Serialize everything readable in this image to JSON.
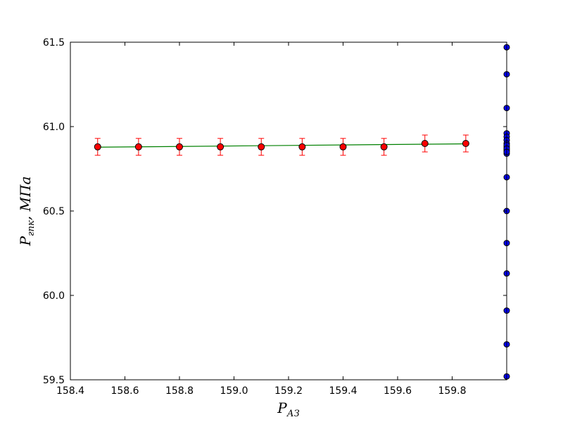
{
  "chart_data": {
    "type": "scatter",
    "title": "",
    "xlabel": {
      "main": "P",
      "sub": "АЗ"
    },
    "ylabel": {
      "main": "P",
      "sub": "гпк",
      "suffix": ", МПа"
    },
    "xlim": [
      158.4,
      160.0
    ],
    "ylim": [
      59.5,
      61.5
    ],
    "x_ticks": [
      "158.4",
      "158.6",
      "158.8",
      "159.0",
      "159.2",
      "159.4",
      "159.6",
      "159.8"
    ],
    "y_ticks": [
      "59.5",
      "60.0",
      "60.5",
      "61.0",
      "61.5"
    ],
    "grid": false,
    "series": [
      {
        "kind": "errorbar",
        "color": "#ff0000",
        "error_color": "#ff0000",
        "x": [
          158.5,
          158.65,
          158.8,
          158.95,
          159.1,
          159.25,
          159.4,
          159.55,
          159.7,
          159.85
        ],
        "y": [
          60.88,
          60.88,
          60.88,
          60.88,
          60.88,
          60.88,
          60.88,
          60.88,
          60.9,
          60.9
        ],
        "yerr": [
          0.05,
          0.05,
          0.05,
          0.05,
          0.05,
          0.05,
          0.05,
          0.05,
          0.05,
          0.05
        ]
      },
      {
        "kind": "fit-line",
        "color": "#008000",
        "x": [
          158.5,
          159.85
        ],
        "y": [
          60.878,
          60.898
        ]
      },
      {
        "kind": "scatter",
        "color": "#0000ff",
        "x": [
          160.0,
          160.0,
          160.0,
          160.0,
          160.0,
          160.0,
          160.0,
          160.0,
          160.0,
          160.0,
          160.0,
          160.0,
          160.0,
          160.0,
          160.0,
          160.0,
          160.0,
          160.0,
          160.0,
          160.0
        ],
        "y": [
          61.47,
          61.31,
          61.11,
          60.96,
          60.94,
          60.92,
          60.9,
          60.88,
          60.86,
          60.84,
          60.7,
          60.5,
          60.31,
          60.13,
          59.91,
          59.71,
          59.52,
          60.89,
          60.87,
          60.85
        ]
      }
    ]
  }
}
